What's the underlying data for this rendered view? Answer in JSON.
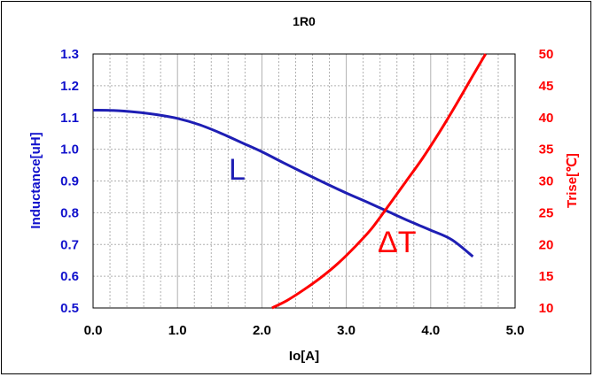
{
  "chart_data": {
    "type": "line",
    "title": "1R0",
    "xlabel": "Io[A]",
    "ylabel_left": "Inductance[uH]",
    "ylabel_right": "Trise[℃]",
    "xlim": [
      0,
      5
    ],
    "ylim_left": [
      0.5,
      1.3
    ],
    "ylim_right": [
      10,
      50
    ],
    "x_ticks": [
      "0.0",
      "1.0",
      "2.0",
      "3.0",
      "4.0",
      "5.0"
    ],
    "y_left_ticks": [
      "0.5",
      "0.6",
      "0.7",
      "0.8",
      "0.9",
      "1.0",
      "1.1",
      "1.2",
      "1.3"
    ],
    "y_right_ticks": [
      "10",
      "15",
      "20",
      "25",
      "30",
      "35",
      "40",
      "45",
      "50"
    ],
    "grid": true,
    "colors": {
      "left_axis": "#1010cc",
      "right_axis": "#ff0000",
      "grid": "#b0b0b0"
    },
    "series": [
      {
        "name": "L",
        "axis": "left",
        "color": "#1e1eb4",
        "x": [
          0.0,
          0.25,
          0.5,
          0.75,
          1.0,
          1.25,
          1.5,
          1.75,
          2.0,
          2.25,
          2.5,
          2.75,
          3.0,
          3.25,
          3.5,
          3.75,
          4.0,
          4.25,
          4.5
        ],
        "y": [
          1.123,
          1.122,
          1.117,
          1.109,
          1.097,
          1.078,
          1.052,
          1.022,
          0.992,
          0.958,
          0.925,
          0.893,
          0.862,
          0.833,
          0.803,
          0.773,
          0.745,
          0.715,
          0.662
        ]
      },
      {
        "name": "ΔT",
        "axis": "right",
        "color": "#ff0000",
        "x": [
          2.12,
          2.3,
          2.5,
          2.7,
          2.9,
          3.1,
          3.3,
          3.5,
          3.7,
          3.9,
          4.1,
          4.3,
          4.5,
          4.65
        ],
        "y": [
          10.0,
          11.2,
          12.9,
          14.8,
          17.0,
          19.6,
          22.5,
          26.1,
          29.8,
          33.5,
          37.6,
          42.0,
          46.6,
          50.0
        ]
      }
    ]
  }
}
